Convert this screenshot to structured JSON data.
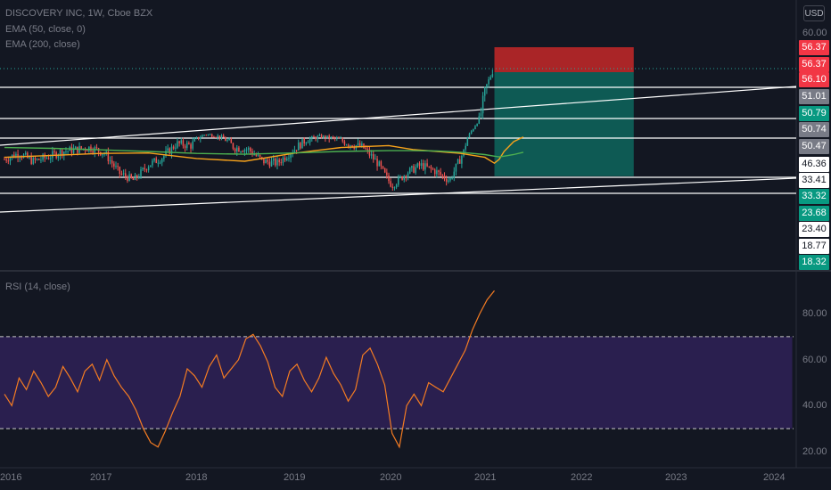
{
  "legend": {
    "title": "DISCOVERY INC, 1W, Cboe BZX",
    "ema50": "EMA (50, close, 0)",
    "ema200": "EMA (200, close)",
    "rsi": "RSI (14, close)"
  },
  "currency": "USD",
  "price_axis": {
    "ticks": [
      "60.00"
    ],
    "tags": [
      {
        "label": "56.37",
        "bg": "#f23645",
        "fg": "#ffffff"
      },
      {
        "label": "56.37",
        "bg": "#f23645",
        "fg": "#ffffff"
      },
      {
        "label": "56.10",
        "bg": "#f23645",
        "fg": "#ffffff"
      },
      {
        "label": "51.01",
        "bg": "#787b86",
        "fg": "#ffffff"
      },
      {
        "label": "50.79",
        "bg": "#089981",
        "fg": "#ffffff"
      },
      {
        "label": "50.74",
        "bg": "#787b86",
        "fg": "#ffffff"
      },
      {
        "label": "50.47",
        "bg": "#787b86",
        "fg": "#ffffff"
      },
      {
        "label": "46.36",
        "bg": "#ffffff",
        "fg": "#131722"
      },
      {
        "label": "33.41",
        "bg": "#ffffff",
        "fg": "#131722"
      },
      {
        "label": "33.32",
        "bg": "#089981",
        "fg": "#ffffff"
      },
      {
        "label": "23.68",
        "bg": "#089981",
        "fg": "#ffffff"
      },
      {
        "label": "23.40",
        "bg": "#ffffff",
        "fg": "#131722"
      },
      {
        "label": "18.77",
        "bg": "#ffffff",
        "fg": "#131722"
      },
      {
        "label": "18.32",
        "bg": "#089981",
        "fg": "#ffffff"
      }
    ]
  },
  "rsi_axis": {
    "ticks": [
      "80.00",
      "60.00",
      "40.00",
      "20.00"
    ]
  },
  "time_axis": {
    "ticks": [
      "2016",
      "2017",
      "2018",
      "2019",
      "2020",
      "2021",
      "2022",
      "2023",
      "2024"
    ]
  },
  "colors": {
    "up": "#26a69a",
    "down": "#ef5350",
    "ema50": "#f7a21b",
    "ema200": "#4caf50",
    "rsi": "#f57c22",
    "rsi_band": "#2a1f4f",
    "stop_zone": "#c62828",
    "target_zone": "#0e6b62"
  },
  "chart_data": [
    {
      "type": "candlestick",
      "x_range": [
        "2016",
        "2024"
      ],
      "series": [
        {
          "name": "EMA (50, close, 0)",
          "y": [
            28.5,
            29,
            29.5,
            29.6,
            28.2,
            27.5,
            29.5,
            31,
            31.5,
            30.5,
            30,
            29.5,
            28.5,
            27,
            28,
            30,
            32.5,
            34.2
          ]
        },
        {
          "name": "EMA (200, close)",
          "y": [
            31,
            30.8,
            30.4,
            30,
            29.5,
            29.3,
            29.6,
            30,
            30.2,
            30.2,
            30.1,
            29.8,
            29.2,
            28.8,
            28.6,
            28.8,
            29.2,
            29.8
          ]
        }
      ],
      "ema_x": [
        "2016",
        "2016.5",
        "2017",
        "2017.5",
        "2018",
        "2018.5",
        "2019",
        "2019.5",
        "2020",
        "2020.25",
        "2020.5",
        "2020.75",
        "2021",
        "2021.1",
        "2021.15",
        "2021.2",
        "2021.3",
        "2021.4"
      ],
      "ohlc_anchor_close": [
        28,
        29.5,
        27.5,
        28.5,
        30,
        30.5,
        31,
        29.5,
        24.5,
        22.5,
        26.5,
        28.5,
        32,
        31.5,
        36,
        34.5,
        31,
        30.5,
        27.5,
        27,
        30,
        33,
        34.5,
        33.5,
        32,
        31,
        27,
        21,
        24.5,
        26.5,
        25,
        22.5,
        30,
        45,
        56.1
      ],
      "annotations": {
        "horizontal_levels": [
          51.01,
          46.36,
          33.41,
          23.4,
          18.77
        ],
        "position": {
          "entry": 51.01,
          "stop": 56.37,
          "target": 23.68
        }
      }
    },
    {
      "type": "line",
      "name": "RSI (14, close)",
      "ylim": [
        20,
        90
      ],
      "bands": [
        30,
        70
      ],
      "x_range": [
        "2016",
        "2021.1"
      ],
      "values": [
        45,
        40,
        52,
        47,
        55,
        50,
        44,
        48,
        57,
        52,
        46,
        55,
        58,
        51,
        60,
        53,
        48,
        44,
        38,
        30,
        24,
        22,
        29,
        37,
        44,
        56,
        53,
        48,
        57,
        62,
        52,
        56,
        60,
        69,
        71,
        66,
        59,
        48,
        44,
        55,
        58,
        51,
        46,
        52,
        61,
        54,
        49,
        42,
        47,
        62,
        65,
        58,
        49,
        28,
        22,
        40,
        45,
        40,
        50,
        48,
        46,
        52,
        58,
        64,
        73,
        80,
        86,
        90
      ]
    }
  ]
}
